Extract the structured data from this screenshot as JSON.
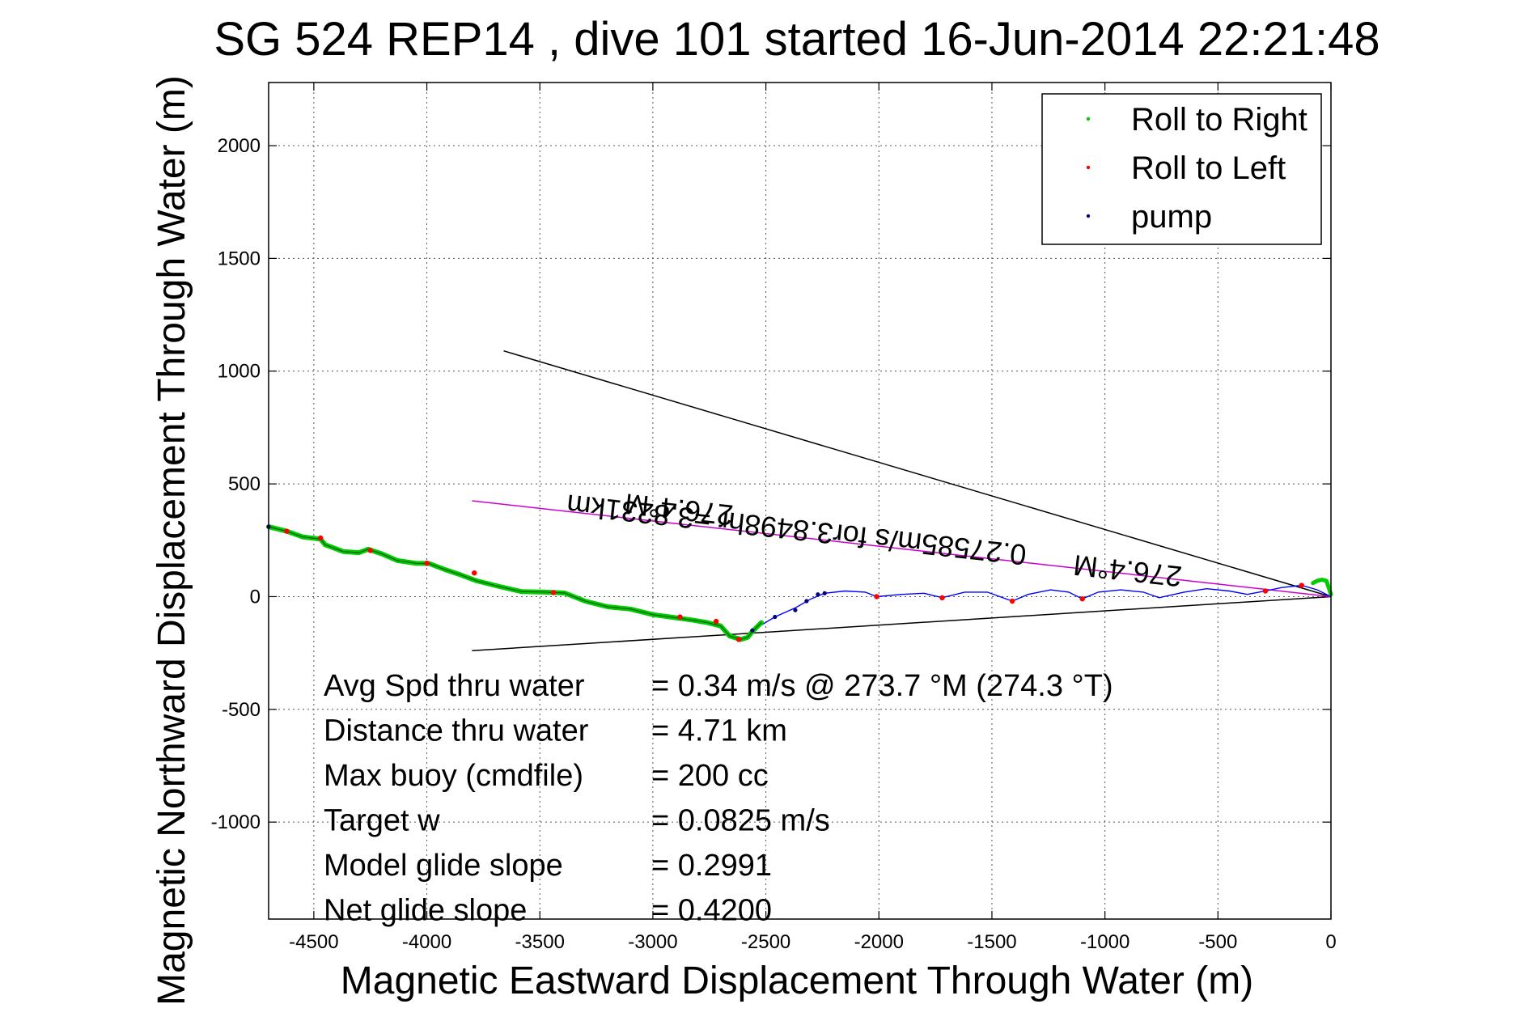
{
  "chart_data": {
    "type": "line",
    "title": "SG 524   REP14  , dive 101 started 16-Jun-2014 22:21:48",
    "xlabel": "Magnetic Eastward Displacement Through Water (m)",
    "ylabel": "Magnetic Northward Displacement Through Water (m)",
    "xlim": [
      -4700,
      0
    ],
    "ylim": [
      -1430,
      2280
    ],
    "xticks": [
      -4500,
      -4000,
      -3500,
      -3000,
      -2500,
      -2000,
      -1500,
      -1000,
      -500,
      0
    ],
    "yticks": [
      -1000,
      -500,
      0,
      500,
      1000,
      1500,
      2000
    ],
    "grid": true,
    "legend": {
      "placement": "top-right",
      "entries": [
        {
          "label": "Roll to Right",
          "color": "#00cc00"
        },
        {
          "label": "Roll to Left",
          "color": "#ff0000"
        },
        {
          "label": "pump",
          "color": "#000080"
        }
      ]
    },
    "colors": {
      "roll_right": "#00cc00",
      "roll_left": "#ff0000",
      "pump": "#000080",
      "track_blue": "#0000ff",
      "heading_line": "#cc00cc",
      "reference_line": "#000000"
    },
    "series": [
      {
        "name": "Roll to Right",
        "x": [
          -4700,
          -4620,
          -4550,
          -4470,
          -4450,
          -4370,
          -4300,
          -4260,
          -4200,
          -4130,
          -4050,
          -3990,
          -3920,
          -3860,
          -3780,
          -3680,
          -3580,
          -3480,
          -3390,
          -3300,
          -3200,
          -3100,
          -3000,
          -2910,
          -2820,
          -2760,
          -2700,
          -2660,
          -2610,
          -2580,
          -2560,
          -2540,
          -2520
        ],
        "y": [
          310,
          290,
          265,
          255,
          230,
          200,
          195,
          210,
          190,
          160,
          148,
          147,
          120,
          100,
          70,
          45,
          22,
          20,
          16,
          -20,
          -45,
          -55,
          -80,
          -92,
          -105,
          -115,
          -130,
          -175,
          -190,
          -180,
          -155,
          -135,
          -115
        ]
      },
      {
        "name": "Roll to Right (tail)",
        "x": [
          -80,
          -60,
          -40,
          -20,
          0
        ],
        "y": [
          60,
          70,
          75,
          70,
          10
        ]
      },
      {
        "name": "Roll to Left",
        "x": [
          -4620,
          -4470,
          -4250,
          -4000,
          -3790,
          -3440,
          -2880,
          -2720,
          -2620,
          -2010,
          -1720,
          -1410,
          -1100,
          -290,
          -130
        ],
        "y": [
          290,
          260,
          205,
          148,
          105,
          18,
          -90,
          -110,
          -190,
          0,
          -5,
          -20,
          -10,
          25,
          50
        ]
      },
      {
        "name": "pump",
        "x": [
          -4700,
          -2560,
          -2460,
          -2370,
          -2320,
          -2270,
          -2240
        ],
        "y": [
          310,
          -150,
          -90,
          -60,
          -20,
          10,
          15
        ]
      },
      {
        "name": "Track (blue)",
        "x": [
          -2560,
          -2460,
          -2370,
          -2300,
          -2240,
          -2150,
          -2060,
          -2010,
          -1900,
          -1800,
          -1720,
          -1620,
          -1520,
          -1410,
          -1340,
          -1240,
          -1160,
          -1100,
          -1030,
          -930,
          -830,
          -760,
          -650,
          -550,
          -450,
          -370,
          -290,
          -220,
          -130,
          -60,
          0
        ],
        "y": [
          -150,
          -90,
          -50,
          -10,
          15,
          25,
          20,
          0,
          10,
          15,
          -5,
          20,
          20,
          -20,
          10,
          30,
          20,
          -10,
          20,
          30,
          20,
          -5,
          20,
          35,
          25,
          10,
          25,
          40,
          50,
          30,
          0
        ]
      },
      {
        "name": "Heading line",
        "x": [
          -3800,
          0
        ],
        "y": [
          425,
          0
        ]
      },
      {
        "name": "Upper reference line",
        "x": [
          -3660,
          0
        ],
        "y": [
          1090,
          0
        ]
      },
      {
        "name": "Lower reference line",
        "x": [
          -3800,
          0
        ],
        "y": [
          -240,
          0
        ]
      }
    ],
    "annotations": [
      {
        "text": "276.4°M",
        "x": -2880,
        "y": 430,
        "rotation": 186.3
      },
      {
        "text": "0.27585m/s for3.8498hr =3.8231km",
        "x": -2360,
        "y": 340,
        "rotation": 186.3
      },
      {
        "text": "276.4°M",
        "x": -895,
        "y": 158,
        "rotation": 186.3
      }
    ],
    "stats": [
      {
        "label": "Avg Spd thru water",
        "value": "=  0.34 m/s @ 273.7 °M (274.3 °T)"
      },
      {
        "label": "Distance thru water",
        "value": "=  4.71 km"
      },
      {
        "label": "Max buoy (cmdfile)",
        "value": "= 200 cc"
      },
      {
        "label": "Target w",
        "value": "= 0.0825 m/s"
      },
      {
        "label": "Model glide slope",
        "value": "= 0.2991"
      },
      {
        "label": "Net glide slope",
        "value": "= 0.4200"
      }
    ]
  }
}
